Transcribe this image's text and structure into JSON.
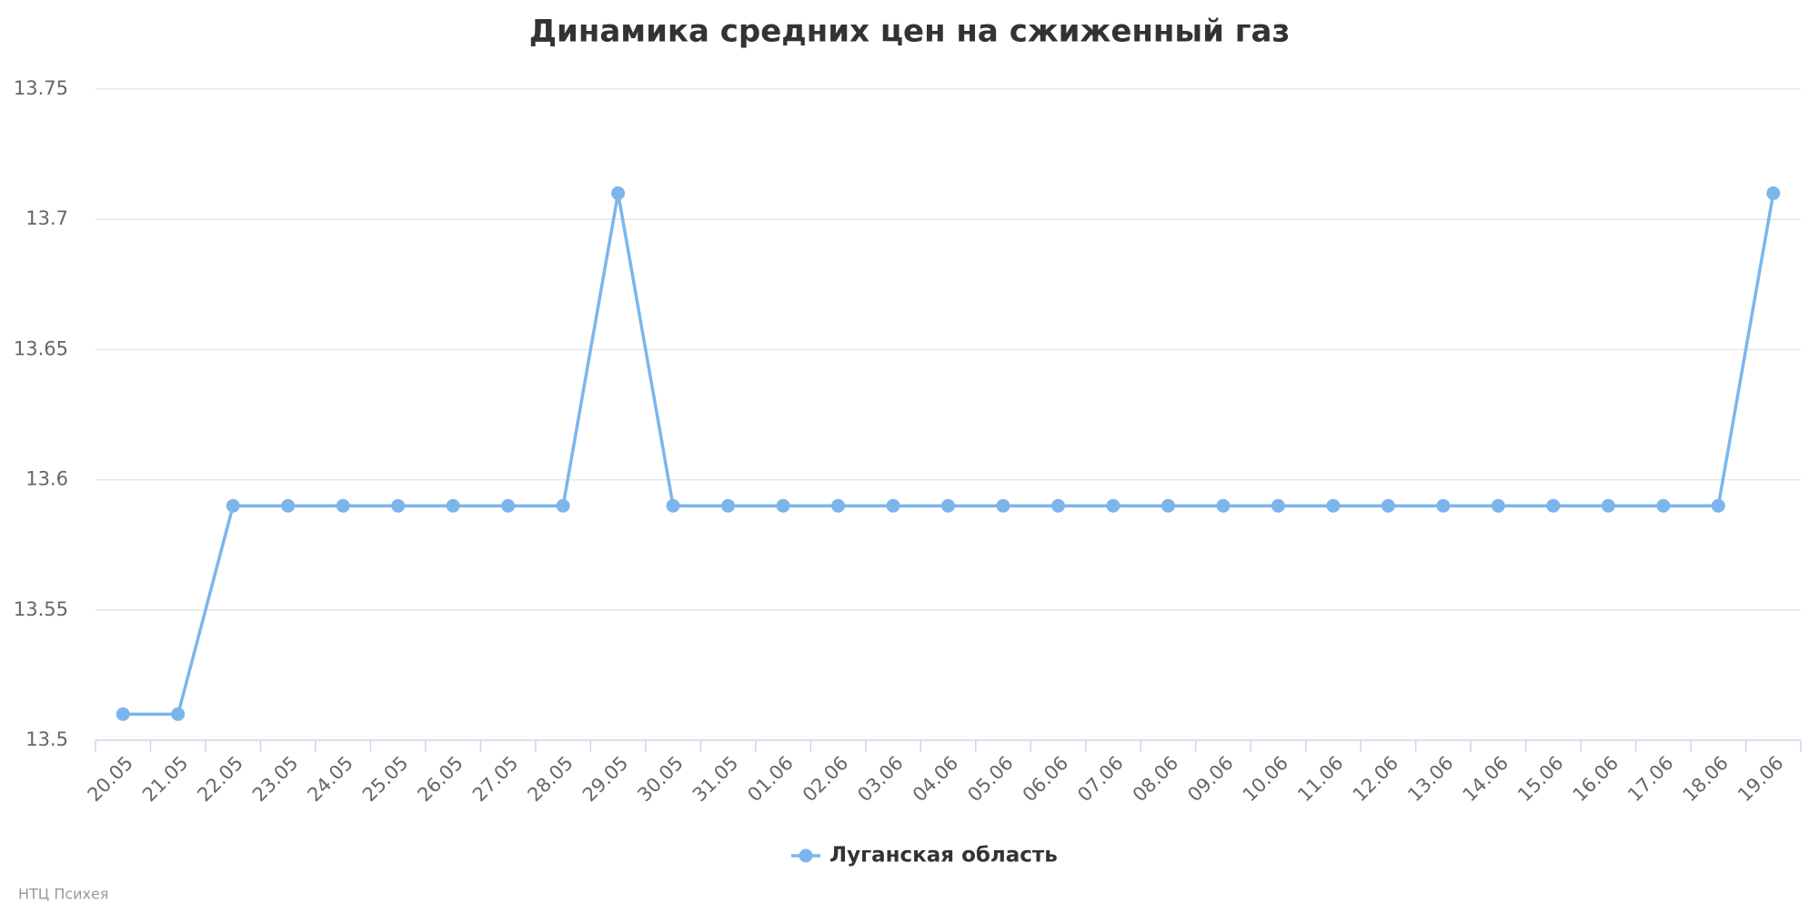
{
  "chart_data": {
    "type": "line",
    "title": "Динамика средних цен на сжиженный газ",
    "categories": [
      "20.05",
      "21.05",
      "22.05",
      "23.05",
      "24.05",
      "25.05",
      "26.05",
      "27.05",
      "28.05",
      "29.05",
      "30.05",
      "31.05",
      "01.06",
      "02.06",
      "03.06",
      "04.06",
      "05.06",
      "06.06",
      "07.06",
      "08.06",
      "09.06",
      "10.06",
      "11.06",
      "12.06",
      "13.06",
      "14.06",
      "15.06",
      "16.06",
      "17.06",
      "18.06",
      "19.06"
    ],
    "series": [
      {
        "name": "Луганская область",
        "color": "#7cb5ec",
        "values": [
          13.51,
          13.51,
          13.59,
          13.59,
          13.59,
          13.59,
          13.59,
          13.59,
          13.59,
          13.71,
          13.59,
          13.59,
          13.59,
          13.59,
          13.59,
          13.59,
          13.59,
          13.59,
          13.59,
          13.59,
          13.59,
          13.59,
          13.59,
          13.59,
          13.59,
          13.59,
          13.59,
          13.59,
          13.59,
          13.59,
          13.71
        ]
      }
    ],
    "ylim": [
      13.5,
      13.75
    ],
    "yticks": [
      13.5,
      13.55,
      13.6,
      13.65,
      13.7,
      13.75
    ],
    "grid": true,
    "legend": "bottom",
    "credits": "НТЦ Психея"
  }
}
